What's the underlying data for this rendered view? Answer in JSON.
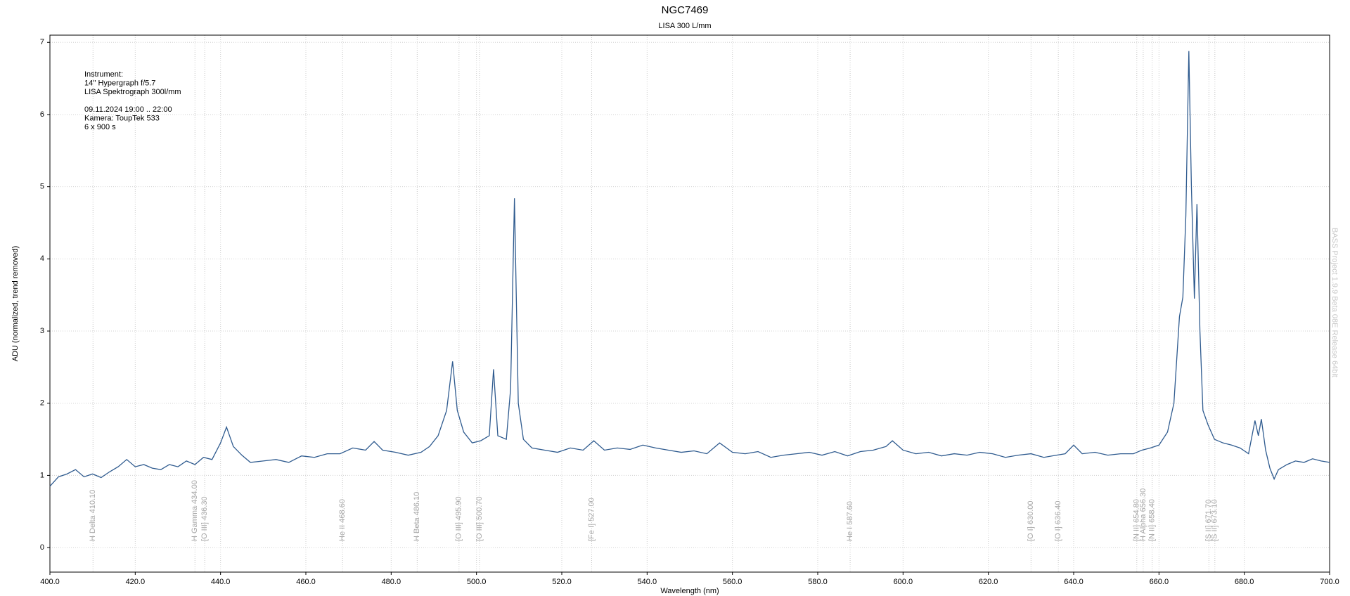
{
  "chart_data": {
    "type": "line",
    "title": "NGC7469",
    "subtitle": "LISA 300 L/mm",
    "x_label": "Wavelength (nm)",
    "y_label": "ADU (normalized, trend removed)",
    "watermark": "BASS Project 1.9.9 Beta 08E Release 64bit",
    "info_instrument": [
      "Instrument:",
      "14'' Hypergraph f/5.7",
      "LISA Spektrograph 300l/mm"
    ],
    "info_session": [
      "09.11.2024  19:00 .. 22:00",
      "Kamera: ToupTek 533",
      "6 x 900 s"
    ],
    "xlim": [
      400,
      700
    ],
    "ylim": [
      -0.34,
      7.1
    ],
    "xticks": [
      {
        "value": 400,
        "label": "400.0"
      },
      {
        "value": 420,
        "label": "420.0"
      },
      {
        "value": 440,
        "label": "440.0"
      },
      {
        "value": 460,
        "label": "460.0"
      },
      {
        "value": 480,
        "label": "480.0"
      },
      {
        "value": 500,
        "label": "500.0"
      },
      {
        "value": 520,
        "label": "520.0"
      },
      {
        "value": 540,
        "label": "540.0"
      },
      {
        "value": 560,
        "label": "560.0"
      },
      {
        "value": 580,
        "label": "580.0"
      },
      {
        "value": 600,
        "label": "600.0"
      },
      {
        "value": 620,
        "label": "620.0"
      },
      {
        "value": 640,
        "label": "640.0"
      },
      {
        "value": 660,
        "label": "660.0"
      },
      {
        "value": 680,
        "label": "680.0"
      },
      {
        "value": 700,
        "label": "700.0"
      }
    ],
    "yticks": [
      0,
      1,
      2,
      3,
      4,
      5,
      6,
      7
    ],
    "grid": true,
    "lines": [
      {
        "label": "H Delta 410.10",
        "x": 410.1
      },
      {
        "label": "H Gamma 434.00",
        "x": 434.0
      },
      {
        "label": "[O III] 436.30",
        "x": 436.3
      },
      {
        "label": "He II 468.60",
        "x": 468.6
      },
      {
        "label": "H Beta 486.10",
        "x": 486.1
      },
      {
        "label": "[O III] 495.90",
        "x": 495.9
      },
      {
        "label": "[O III] 500.70",
        "x": 500.7
      },
      {
        "label": "[Fe I] 527.00",
        "x": 527.0
      },
      {
        "label": "He I 587.60",
        "x": 587.6
      },
      {
        "label": "[O I] 630.00",
        "x": 630.0
      },
      {
        "label": "[O I] 636.40",
        "x": 636.4
      },
      {
        "label": "[N II] 654.80",
        "x": 654.8
      },
      {
        "label": "H Alpha 656.30",
        "x": 656.3
      },
      {
        "label": "[N II] 658.40",
        "x": 658.4
      },
      {
        "label": "[S II] 671.70",
        "x": 671.7
      },
      {
        "label": "[S II] 673.10",
        "x": 673.1
      }
    ],
    "x": [
      400,
      402,
      404,
      406,
      408,
      410,
      412,
      414,
      416,
      418,
      420,
      422,
      424,
      426,
      428,
      430,
      432,
      434,
      436,
      438,
      440,
      441.4,
      443,
      445,
      447,
      450,
      453,
      456,
      459,
      462,
      465,
      468,
      471,
      474,
      476,
      478,
      481,
      484,
      487,
      489,
      491,
      493,
      494.4,
      495.5,
      497,
      499,
      501,
      503,
      504,
      505,
      507,
      508,
      508.9,
      509.8,
      511,
      513,
      516,
      519,
      522,
      525,
      527.5,
      530,
      533,
      536,
      539,
      542,
      545,
      548,
      551,
      554,
      557,
      560,
      563,
      566,
      569,
      572,
      575,
      578,
      581,
      584,
      587,
      590,
      593,
      596,
      597.5,
      600,
      603,
      606,
      609,
      612,
      615,
      618,
      621,
      624,
      627,
      630,
      633,
      636,
      638,
      640,
      642,
      645,
      648,
      651,
      654,
      656,
      658,
      660,
      662,
      663.5,
      664.8,
      665.6,
      666.3,
      667,
      667.6,
      668.3,
      668.9,
      669.6,
      670.3,
      671.5,
      673,
      675,
      677,
      679,
      681,
      682.5,
      683.3,
      684,
      685,
      686,
      687,
      688,
      690,
      692,
      694,
      696,
      698,
      700
    ],
    "series": [
      {
        "name": "NGC7469",
        "color": "#2f5b8f",
        "values": [
          0.85,
          0.98,
          1.02,
          1.08,
          0.98,
          1.02,
          0.97,
          1.05,
          1.12,
          1.22,
          1.12,
          1.15,
          1.1,
          1.08,
          1.15,
          1.12,
          1.2,
          1.15,
          1.25,
          1.22,
          1.45,
          1.67,
          1.4,
          1.28,
          1.18,
          1.2,
          1.22,
          1.18,
          1.27,
          1.25,
          1.3,
          1.3,
          1.38,
          1.35,
          1.47,
          1.35,
          1.32,
          1.28,
          1.32,
          1.4,
          1.55,
          1.9,
          2.58,
          1.9,
          1.6,
          1.45,
          1.48,
          1.55,
          2.47,
          1.55,
          1.5,
          2.2,
          4.84,
          2.0,
          1.5,
          1.38,
          1.35,
          1.32,
          1.38,
          1.35,
          1.48,
          1.35,
          1.38,
          1.36,
          1.42,
          1.38,
          1.35,
          1.32,
          1.34,
          1.3,
          1.45,
          1.32,
          1.3,
          1.33,
          1.25,
          1.28,
          1.3,
          1.32,
          1.28,
          1.33,
          1.27,
          1.33,
          1.35,
          1.4,
          1.48,
          1.35,
          1.3,
          1.32,
          1.27,
          1.3,
          1.28,
          1.32,
          1.3,
          1.25,
          1.28,
          1.3,
          1.25,
          1.28,
          1.3,
          1.42,
          1.3,
          1.32,
          1.28,
          1.3,
          1.3,
          1.35,
          1.38,
          1.42,
          1.6,
          2.0,
          3.2,
          3.47,
          4.6,
          6.88,
          5.0,
          3.45,
          4.76,
          3.0,
          1.9,
          1.7,
          1.5,
          1.45,
          1.42,
          1.38,
          1.3,
          1.76,
          1.55,
          1.78,
          1.35,
          1.1,
          0.95,
          1.08,
          1.15,
          1.2,
          1.18,
          1.23,
          1.2,
          1.18
        ]
      }
    ]
  }
}
